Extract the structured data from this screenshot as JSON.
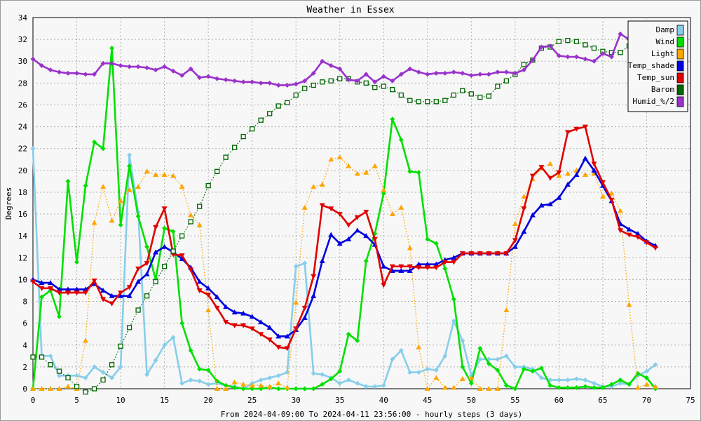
{
  "chart_data": {
    "type": "line",
    "title": "Weather in Essex",
    "xlabel": "From 2024-04-09:00 To 2024-04-11 23:56:00 - hourly steps (3 days)",
    "ylabel": "Degrees",
    "xlim": [
      0,
      75
    ],
    "ylim": [
      0,
      34
    ],
    "xticks": [
      0,
      5,
      10,
      15,
      20,
      25,
      30,
      35,
      40,
      45,
      50,
      55,
      60,
      65,
      70,
      75
    ],
    "yticks": [
      0,
      2,
      4,
      6,
      8,
      10,
      12,
      14,
      16,
      18,
      20,
      22,
      24,
      26,
      28,
      30,
      32,
      34
    ],
    "grid": true,
    "legend_position": "top-right",
    "series": [
      {
        "name": "Damp",
        "color": "#87ceeb",
        "marker": "diamond",
        "style": "solid",
        "values": [
          22,
          3,
          3,
          1.2,
          1.2,
          1.2,
          1,
          2,
          1.5,
          1,
          2,
          21.4,
          16.2,
          1.3,
          2.6,
          4,
          4.7,
          0.5,
          0.8,
          0.7,
          0.4,
          0.5,
          0.3,
          0.2,
          0,
          0.5,
          0.8,
          1,
          1.2,
          1.5,
          11.2,
          11.5,
          1.4,
          1.3,
          1,
          0.5,
          0.8,
          0.5,
          0.2,
          0.2,
          0.3,
          2.7,
          3.5,
          1.5,
          1.5,
          1.8,
          1.7,
          3,
          6.2,
          4.4,
          1.2,
          2.7,
          2.7,
          2.7,
          3,
          2,
          2,
          1.8,
          1,
          0.8,
          0.8,
          0.8,
          0.9,
          0.8,
          0.5,
          0.2,
          0.2,
          0.5,
          0.4,
          1.2,
          1.6,
          2.2
        ]
      },
      {
        "name": "Wind",
        "color": "#00e000",
        "marker": "diamond",
        "style": "solid",
        "values": [
          0,
          8.4,
          9,
          6.6,
          19,
          11.6,
          18.6,
          22.6,
          22,
          31.2,
          15,
          20.4,
          15.8,
          13,
          10,
          14.7,
          14.4,
          6,
          3.5,
          1.8,
          1.7,
          0.7,
          0.3,
          0.1,
          0,
          0,
          0,
          0.1,
          0,
          0,
          0,
          0,
          0,
          0.4,
          0.9,
          1.6,
          5,
          4.4,
          11.7,
          14.2,
          17.9,
          24.7,
          22.8,
          19.9,
          19.8,
          13.7,
          13.3,
          11,
          8.2,
          2,
          0.5,
          3.7,
          2.3,
          1.7,
          0.3,
          0,
          1.8,
          1.6,
          1.9,
          0.3,
          0.1,
          0.1,
          0.1,
          0.2,
          0.1,
          0.1,
          0.4,
          0.8,
          0.4,
          1.4,
          1,
          0
        ]
      },
      {
        "name": "Light",
        "color": "#ffa500",
        "marker": "triangle-up",
        "style": "dotted",
        "values": [
          0,
          0,
          0,
          0,
          0.2,
          0,
          4.4,
          15.2,
          18.5,
          15.4,
          17.2,
          18.2,
          18.5,
          19.9,
          19.6,
          19.6,
          19.5,
          18.5,
          15.9,
          15,
          7.2,
          0,
          0,
          0.6,
          0.4,
          0.3,
          0.3,
          0.2,
          0.5,
          0.1,
          7.9,
          16.6,
          18.5,
          18.7,
          21,
          21.2,
          20.4,
          19.7,
          19.8,
          20.4,
          18.2,
          16,
          16.6,
          12.9,
          3.8,
          0,
          1,
          0.1,
          0.1,
          0.9,
          1,
          0,
          0,
          0,
          7.2,
          15.1,
          17.6,
          19.2,
          20.2,
          20.6,
          19.5,
          19.7,
          20,
          19.6,
          19.7,
          17.6,
          17.9,
          16.3,
          7.7,
          0.1,
          0.4,
          0.2
        ]
      },
      {
        "name": "Temp_shade",
        "color": "#0000e0",
        "marker": "triangle-up",
        "style": "solid",
        "values": [
          10,
          9.7,
          9.7,
          9.1,
          9.1,
          9.1,
          9.1,
          9.6,
          9,
          8.5,
          8.5,
          8.5,
          9.8,
          10.5,
          12.5,
          13,
          12.5,
          11.9,
          11.1,
          9.8,
          9.2,
          8.4,
          7.5,
          7,
          6.9,
          6.6,
          6.1,
          5.6,
          4.8,
          4.8,
          5.4,
          6.5,
          8.5,
          11.7,
          14.1,
          13.3,
          13.7,
          14.5,
          14,
          13.2,
          11.2,
          10.8,
          10.8,
          10.8,
          11.4,
          11.4,
          11.4,
          11.8,
          12,
          12.4,
          12.4,
          12.4,
          12.4,
          12.4,
          12.4,
          13,
          14.4,
          15.9,
          16.8,
          16.9,
          17.5,
          18.7,
          19.6,
          21.1,
          20,
          18.6,
          17.2,
          15.1,
          14.6,
          14.2,
          13.5,
          13.1
        ]
      },
      {
        "name": "Temp_sun",
        "color": "#e00000",
        "marker": "triangle-down",
        "style": "solid",
        "values": [
          9.8,
          9.2,
          9.2,
          8.8,
          8.8,
          8.8,
          8.8,
          9.9,
          8.2,
          7.8,
          8.8,
          9.3,
          11,
          11.5,
          14.8,
          16.5,
          12.3,
          12.2,
          10.9,
          9,
          8.6,
          7.4,
          6.1,
          5.8,
          5.8,
          5.5,
          5,
          4.5,
          3.8,
          3.7,
          5.5,
          7.4,
          10.3,
          16.8,
          16.5,
          16,
          15,
          15.7,
          16.2,
          13.7,
          9.5,
          11.2,
          11.2,
          11.2,
          11.1,
          11.1,
          11.1,
          11.6,
          11.6,
          12.4,
          12.4,
          12.4,
          12.4,
          12.4,
          12.4,
          13.6,
          16.5,
          19.5,
          20.3,
          19.3,
          19.8,
          23.5,
          23.8,
          24,
          20.6,
          18.9,
          17.3,
          14.5,
          14.1,
          13.9,
          13.4,
          12.9
        ]
      },
      {
        "name": "Barom",
        "color": "#006400",
        "marker": "square",
        "style": "dotted",
        "values": [
          2.9,
          2.9,
          2.2,
          1.6,
          1,
          0.2,
          -0.3,
          0,
          0.8,
          2.2,
          3.9,
          5.6,
          7.2,
          8.5,
          9.8,
          11.2,
          12.6,
          14,
          15.3,
          16.7,
          18.6,
          19.9,
          21.2,
          22.1,
          23.1,
          23.8,
          24.6,
          25.2,
          25.9,
          26.2,
          26.9,
          27.5,
          27.8,
          28.1,
          28.2,
          28.4,
          28.4,
          28.1,
          28,
          27.6,
          27.7,
          27.4,
          26.9,
          26.4,
          26.3,
          26.3,
          26.3,
          26.4,
          26.9,
          27.3,
          27,
          26.7,
          26.8,
          27.7,
          28.2,
          28.8,
          29.7,
          30.1,
          31.2,
          31.3,
          31.8,
          31.9,
          31.8,
          31.5,
          31.2,
          30.9,
          30.8,
          30.8,
          31.4,
          31.3,
          31.5,
          31.2
        ]
      },
      {
        "name": "Humid_%/2",
        "color": "#9932cc",
        "marker": "diamond",
        "style": "solid",
        "values": [
          30.2,
          29.6,
          29.2,
          29,
          28.9,
          28.9,
          28.8,
          28.8,
          29.8,
          29.8,
          29.6,
          29.5,
          29.5,
          29.4,
          29.2,
          29.5,
          29.1,
          28.7,
          29.3,
          28.5,
          28.6,
          28.4,
          28.3,
          28.2,
          28.1,
          28.1,
          28,
          28,
          27.8,
          27.8,
          27.9,
          28.2,
          28.9,
          30,
          29.6,
          29.3,
          28.3,
          28.2,
          28.8,
          28.1,
          28.6,
          28.2,
          28.8,
          29.3,
          29,
          28.8,
          28.9,
          28.9,
          29,
          28.9,
          28.7,
          28.8,
          28.8,
          29,
          29,
          28.9,
          29.2,
          30.1,
          31.3,
          31.4,
          30.5,
          30.4,
          30.4,
          30.2,
          30,
          30.7,
          30.4,
          32.5,
          32,
          31.5,
          31.3,
          31.1
        ]
      }
    ]
  }
}
